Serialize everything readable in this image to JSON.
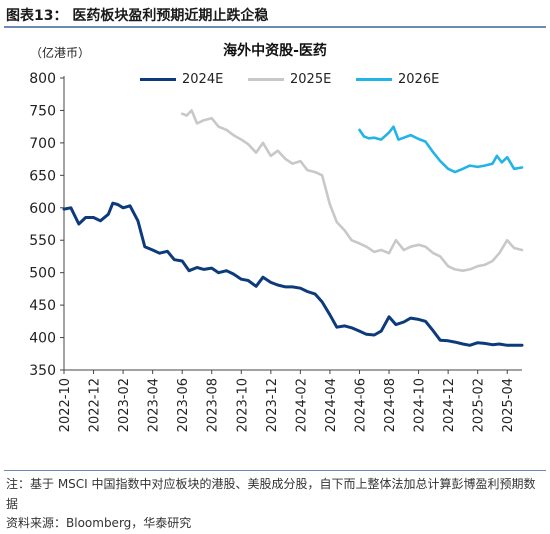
{
  "header": {
    "figure_title": "图表13：   医药板块盈利预期近期止跌企稳",
    "unit_label": "（亿港币）"
  },
  "footer": {
    "note": "注：基于 MSCI 中国指数中对应板块的港股、美股成分股，自下而上整体法加总计算彭博盈利预期数据",
    "source": "资料来源：Bloomberg，华泰研究"
  },
  "chart_data": {
    "type": "line",
    "title": "海外中资股-医药",
    "xlabel": "",
    "ylabel": "",
    "ylim": [
      350,
      800
    ],
    "yticks": [
      350,
      400,
      450,
      500,
      550,
      600,
      650,
      700,
      750,
      800
    ],
    "xlim": [
      "2022-10",
      "2025-05"
    ],
    "xticks": [
      "2022-10",
      "2022-12",
      "2023-02",
      "2023-04",
      "2023-06",
      "2023-08",
      "2023-10",
      "2023-12",
      "2024-02",
      "2024-04",
      "2024-06",
      "2024-08",
      "2024-10",
      "2024-12",
      "2025-02",
      "2025-04"
    ],
    "grid": false,
    "legend_position": "top",
    "series": [
      {
        "name": "2024E",
        "color": "#0c3a7a",
        "x": [
          "2022-10-01",
          "2022-10-15",
          "2022-11-01",
          "2022-11-15",
          "2022-12-01",
          "2022-12-15",
          "2023-01-01",
          "2023-01-10",
          "2023-01-20",
          "2023-02-01",
          "2023-02-15",
          "2023-03-01",
          "2023-03-15",
          "2023-04-01",
          "2023-04-15",
          "2023-05-01",
          "2023-05-15",
          "2023-06-01",
          "2023-06-15",
          "2023-07-01",
          "2023-07-15",
          "2023-08-01",
          "2023-08-15",
          "2023-09-01",
          "2023-09-15",
          "2023-10-01",
          "2023-10-15",
          "2023-11-01",
          "2023-11-15",
          "2023-12-01",
          "2023-12-15",
          "2024-01-01",
          "2024-01-15",
          "2024-02-01",
          "2024-02-15",
          "2024-03-01",
          "2024-03-15",
          "2024-04-01",
          "2024-04-15",
          "2024-05-01",
          "2024-05-15",
          "2024-06-01",
          "2024-06-15",
          "2024-07-01",
          "2024-07-15",
          "2024-08-01",
          "2024-08-15",
          "2024-09-01",
          "2024-09-15",
          "2024-10-01",
          "2024-10-15",
          "2024-11-01",
          "2024-11-15",
          "2024-12-01",
          "2024-12-15",
          "2025-01-01",
          "2025-01-15",
          "2025-02-01",
          "2025-02-15",
          "2025-03-01",
          "2025-03-15",
          "2025-04-01",
          "2025-04-15",
          "2025-05-01"
        ],
        "values": [
          598,
          600,
          575,
          585,
          585,
          580,
          590,
          607,
          605,
          600,
          603,
          580,
          540,
          535,
          530,
          533,
          520,
          518,
          503,
          508,
          505,
          507,
          500,
          503,
          498,
          490,
          488,
          479,
          493,
          485,
          481,
          478,
          478,
          476,
          471,
          467,
          455,
          435,
          416,
          418,
          415,
          410,
          405,
          404,
          410,
          432,
          420,
          424,
          430,
          428,
          425,
          410,
          396,
          395,
          393,
          390,
          388,
          392,
          391,
          389,
          390,
          388,
          388,
          388
        ]
      },
      {
        "name": "2025E",
        "color": "#c8c8c8",
        "x": [
          "2023-06-01",
          "2023-06-10",
          "2023-06-20",
          "2023-07-01",
          "2023-07-15",
          "2023-08-01",
          "2023-08-15",
          "2023-09-01",
          "2023-09-15",
          "2023-10-01",
          "2023-10-15",
          "2023-11-01",
          "2023-11-15",
          "2023-12-01",
          "2023-12-15",
          "2024-01-01",
          "2024-01-15",
          "2024-02-01",
          "2024-02-15",
          "2024-03-01",
          "2024-03-15",
          "2024-04-01",
          "2024-04-15",
          "2024-05-01",
          "2024-05-15",
          "2024-06-01",
          "2024-06-15",
          "2024-07-01",
          "2024-07-15",
          "2024-08-01",
          "2024-08-15",
          "2024-09-01",
          "2024-09-15",
          "2024-10-01",
          "2024-10-15",
          "2024-11-01",
          "2024-11-15",
          "2024-12-01",
          "2024-12-15",
          "2025-01-01",
          "2025-01-15",
          "2025-02-01",
          "2025-02-15",
          "2025-03-01",
          "2025-03-15",
          "2025-04-01",
          "2025-04-15",
          "2025-05-01"
        ],
        "values": [
          745,
          742,
          750,
          730,
          735,
          738,
          725,
          720,
          712,
          705,
          698,
          685,
          700,
          680,
          688,
          675,
          668,
          672,
          658,
          655,
          650,
          605,
          578,
          565,
          550,
          545,
          540,
          532,
          535,
          530,
          550,
          535,
          540,
          543,
          540,
          530,
          525,
          510,
          505,
          503,
          505,
          510,
          512,
          518,
          530,
          550,
          538,
          535
        ]
      },
      {
        "name": "2026E",
        "color": "#22b4e6",
        "x": [
          "2024-06-01",
          "2024-06-10",
          "2024-06-20",
          "2024-07-01",
          "2024-07-15",
          "2024-08-01",
          "2024-08-10",
          "2024-08-20",
          "2024-09-01",
          "2024-09-15",
          "2024-10-01",
          "2024-10-15",
          "2024-11-01",
          "2024-11-15",
          "2024-12-01",
          "2024-12-15",
          "2025-01-01",
          "2025-01-15",
          "2025-02-01",
          "2025-02-15",
          "2025-03-01",
          "2025-03-10",
          "2025-03-20",
          "2025-04-01",
          "2025-04-15",
          "2025-05-01"
        ],
        "values": [
          720,
          710,
          707,
          708,
          705,
          716,
          725,
          705,
          708,
          712,
          706,
          702,
          685,
          672,
          660,
          655,
          660,
          665,
          663,
          665,
          668,
          680,
          670,
          678,
          660,
          662
        ]
      }
    ]
  }
}
